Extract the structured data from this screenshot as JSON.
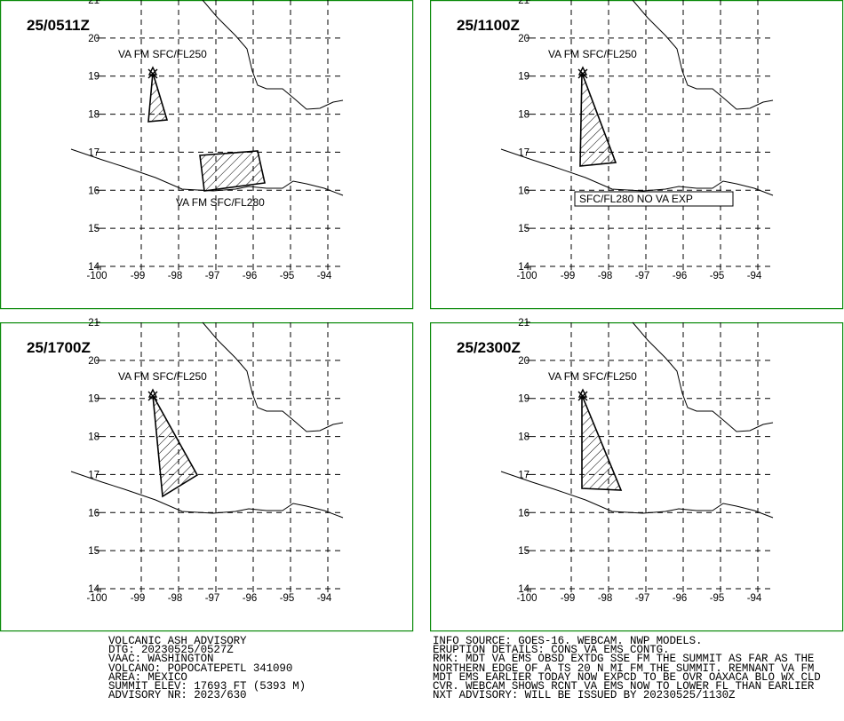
{
  "panels": [
    {
      "time": "25/0511Z",
      "annotations": [
        "VA FM SFC/FL250",
        "VA FM SFC/FL280"
      ]
    },
    {
      "time": "25/1100Z",
      "annotations": [
        "VA FM SFC/FL250",
        "SFC/FL280 NO VA EXP"
      ]
    },
    {
      "time": "25/1700Z",
      "annotations": [
        "VA FM SFC/FL250"
      ]
    },
    {
      "time": "25/2300Z",
      "annotations": [
        "VA FM SFC/FL250"
      ]
    }
  ],
  "lat_ticks": [
    14,
    15,
    16,
    17,
    18,
    19,
    20,
    21
  ],
  "lon_ticks": [
    -100,
    -99,
    -98,
    -97,
    -96,
    -95,
    -94
  ],
  "advisory_left": [
    "VOLCANIC ASH ADVISORY",
    "DTG: 20230525/0527Z",
    "VAAC: WASHINGTON",
    "VOLCANO: POPOCATEPETL 341090",
    "AREA: MEXICO",
    "SUMMIT ELEV: 17693 FT (5393 M)",
    "ADVISORY NR: 2023/630"
  ],
  "advisory_right": [
    "INFO SOURCE: GOES-16. WEBCAM. NWP MODELS.",
    "ERUPTION DETAILS: CONS VA EMS CONTG.",
    "RMK: MDT VA EMS OBSD EXTDG SSE FM THE SUMMIT AS FAR AS THE",
    "NORTHERN EDGE OF A TS 20 N MI FM THE SUMMIT. REMNANT VA FM",
    "MDT EMS EARLIER TODAY NOW EXPCD TO BE OVR OAXACA BLO WX CLD",
    "CVR. WEBCAM SHOWS RCNT VA EMS NOW TO LOWER FL THAN EARLIER",
    "NXT ADVISORY: WILL BE ISSUED BY 20230525/1130Z"
  ]
}
